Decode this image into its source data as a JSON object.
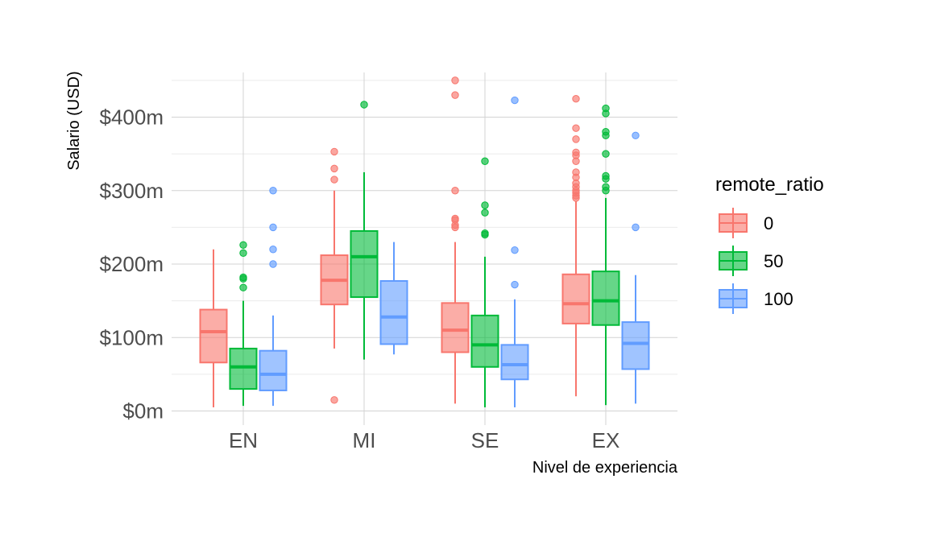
{
  "chart_data": {
    "type": "boxplot",
    "title": "",
    "xlabel": "Nivel de experiencia",
    "ylabel": "Salario (USD)",
    "ylim": [
      0,
      450
    ],
    "y_ticks": [
      0,
      100,
      200,
      300,
      400
    ],
    "y_tick_labels": [
      "$0m",
      "$100m",
      "$200m",
      "$300m",
      "$400m"
    ],
    "categories": [
      "EN",
      "MI",
      "SE",
      "EX"
    ],
    "legend_title": "remote_ratio",
    "legend_position": "right",
    "grid": true,
    "series": [
      {
        "name": "0",
        "color": "#f8766d",
        "boxes": [
          {
            "category": "EN",
            "whisker_low": 5,
            "q1": 66,
            "median": 108,
            "q3": 138,
            "whisker_high": 220,
            "outliers": []
          },
          {
            "category": "MI",
            "whisker_low": 85,
            "q1": 145,
            "median": 178,
            "q3": 212,
            "whisker_high": 300,
            "outliers": [
              15,
              315,
              330,
              353
            ]
          },
          {
            "category": "SE",
            "whisker_low": 10,
            "q1": 80,
            "median": 110,
            "q3": 147,
            "whisker_high": 230,
            "outliers": [
              250,
              253,
              260,
              262,
              300,
              430,
              450
            ]
          },
          {
            "category": "EX",
            "whisker_low": 20,
            "q1": 119,
            "median": 146,
            "q3": 186,
            "whisker_high": 285,
            "outliers": [
              290,
              293,
              297,
              300,
              305,
              310,
              318,
              325,
              340,
              348,
              352,
              370,
              385,
              425
            ]
          }
        ]
      },
      {
        "name": "50",
        "color": "#00ba38",
        "boxes": [
          {
            "category": "EN",
            "whisker_low": 7,
            "q1": 30,
            "median": 60,
            "q3": 85,
            "whisker_high": 150,
            "outliers": [
              168,
              180,
              182,
              215,
              226
            ]
          },
          {
            "category": "MI",
            "whisker_low": 70,
            "q1": 155,
            "median": 210,
            "q3": 245,
            "whisker_high": 325,
            "outliers": [
              417
            ]
          },
          {
            "category": "SE",
            "whisker_low": 5,
            "q1": 60,
            "median": 90,
            "q3": 130,
            "whisker_high": 210,
            "outliers": [
              240,
              242,
              270,
              280,
              340
            ]
          },
          {
            "category": "EX",
            "whisker_low": 8,
            "q1": 117,
            "median": 150,
            "q3": 190,
            "whisker_high": 290,
            "outliers": [
              300,
              305,
              316,
              320,
              350,
              375,
              380,
              405,
              412
            ]
          }
        ]
      },
      {
        "name": "100",
        "color": "#619cff",
        "boxes": [
          {
            "category": "EN",
            "whisker_low": 7,
            "q1": 28,
            "median": 50,
            "q3": 82,
            "whisker_high": 130,
            "outliers": [
              200,
              220,
              250,
              300
            ]
          },
          {
            "category": "MI",
            "whisker_low": 77,
            "q1": 91,
            "median": 128,
            "q3": 177,
            "whisker_high": 230,
            "outliers": []
          },
          {
            "category": "SE",
            "whisker_low": 5,
            "q1": 43,
            "median": 63,
            "q3": 90,
            "whisker_high": 152,
            "outliers": [
              172,
              219,
              423
            ]
          },
          {
            "category": "EX",
            "whisker_low": 10,
            "q1": 57,
            "median": 92,
            "q3": 121,
            "whisker_high": 185,
            "outliers": [
              250,
              375
            ]
          }
        ]
      }
    ]
  }
}
